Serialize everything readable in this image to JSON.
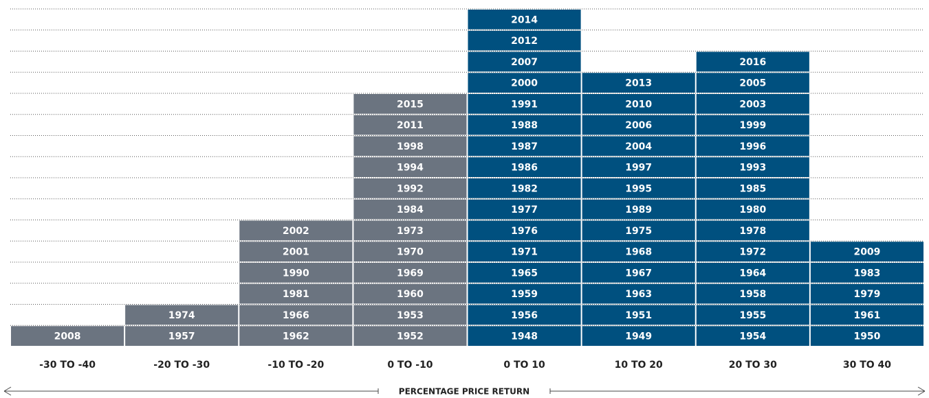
{
  "chart_data": {
    "type": "year-stack",
    "categories": [
      "-30 TO -40",
      "-20 TO -30",
      "-10 TO -20",
      "0 TO -10",
      "0 TO 10",
      "10 TO 20",
      "20 TO 30",
      "30 TO 40"
    ],
    "colors": [
      "#6b7480",
      "#6b7480",
      "#6b7480",
      "#6b7480",
      "#00507f",
      "#00507f",
      "#00507f",
      "#00507f"
    ],
    "stacks": [
      [
        2008
      ],
      [
        1957,
        1974
      ],
      [
        1962,
        1966,
        1981,
        1990,
        2001,
        2002
      ],
      [
        1952,
        1953,
        1960,
        1969,
        1970,
        1973,
        1984,
        1992,
        1994,
        1998,
        2011,
        2015
      ],
      [
        1948,
        1956,
        1959,
        1965,
        1971,
        1976,
        1977,
        1982,
        1986,
        1987,
        1988,
        1991,
        2000,
        2007,
        2012,
        2014
      ],
      [
        1949,
        1951,
        1963,
        1967,
        1968,
        1975,
        1989,
        1995,
        1997,
        2004,
        2006,
        2010,
        2013
      ],
      [
        1954,
        1955,
        1958,
        1964,
        1972,
        1978,
        1980,
        1985,
        1993,
        1996,
        1999,
        2003,
        2005,
        2016
      ],
      [
        1950,
        1961,
        1979,
        1983,
        2009
      ]
    ],
    "x_label": "PERCENTAGE PRICE RETURN",
    "grid": true
  }
}
